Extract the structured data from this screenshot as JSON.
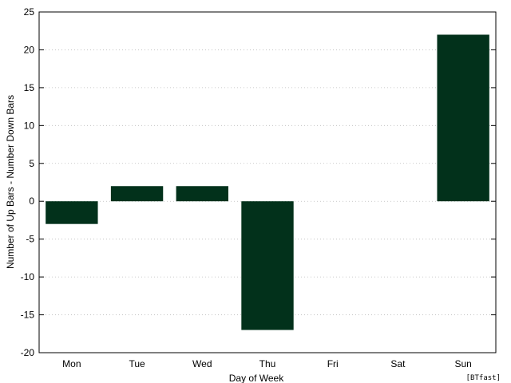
{
  "chart_data": {
    "type": "bar",
    "title": "",
    "xlabel": "Day of Week",
    "ylabel": "Number of Up Bars - Number Down Bars",
    "categories": [
      "Mon",
      "Tue",
      "Wed",
      "Thu",
      "Fri",
      "Sat",
      "Sun"
    ],
    "values": [
      -3,
      2,
      2,
      -17,
      0,
      0,
      22
    ],
    "ylim": [
      -20,
      25
    ],
    "yticks": [
      -20,
      -15,
      -10,
      -5,
      0,
      5,
      10,
      15,
      20,
      25
    ],
    "grid": true,
    "bar_color": "#02311b",
    "annotation": "[BTfast]"
  }
}
